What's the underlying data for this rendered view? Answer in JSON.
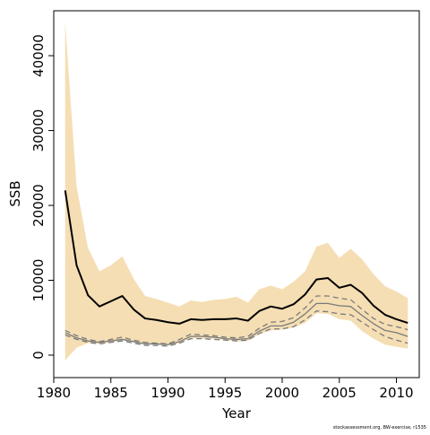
{
  "chart_data": {
    "type": "line",
    "title": "",
    "xlabel": "Year",
    "ylabel": "SSB",
    "xlim": [
      1980,
      2012
    ],
    "ylim": [
      -3000,
      46000
    ],
    "x_ticks": [
      1980,
      1985,
      1990,
      1995,
      2000,
      2005,
      2010
    ],
    "y_ticks": [
      0,
      10000,
      20000,
      30000,
      40000
    ],
    "grid": false,
    "legend": "none",
    "credit": "stockassessment.org, BW-exercise, r1535",
    "years": [
      1981,
      1982,
      1983,
      1984,
      1985,
      1986,
      1987,
      1988,
      1989,
      1990,
      1991,
      1992,
      1993,
      1994,
      1995,
      1996,
      1997,
      1998,
      1999,
      2000,
      2001,
      2002,
      2003,
      2004,
      2005,
      2006,
      2007,
      2008,
      2009,
      2010,
      2011
    ],
    "band": {
      "color": "#f5deb3",
      "upper": [
        44500,
        22500,
        14300,
        11200,
        12000,
        13200,
        10200,
        7900,
        7500,
        7000,
        6500,
        7300,
        7100,
        7400,
        7500,
        7800,
        7000,
        8800,
        9300,
        8800,
        9800,
        11200,
        14500,
        15000,
        13000,
        14200,
        12800,
        10800,
        9200,
        8500,
        7600
      ],
      "lower": [
        -700,
        1000,
        1600,
        1500,
        1700,
        2000,
        1700,
        1500,
        1400,
        1300,
        1600,
        2300,
        2200,
        2200,
        2000,
        1800,
        1900,
        2800,
        3300,
        3400,
        3700,
        4300,
        5600,
        5500,
        4800,
        4600,
        3200,
        2200,
        1400,
        1100,
        900
      ]
    },
    "series": [
      {
        "role": "estimate",
        "color": "#000000",
        "style": "solid",
        "values": [
          22000,
          12000,
          8000,
          6500,
          7200,
          7900,
          6100,
          4900,
          4700,
          4400,
          4200,
          4800,
          4700,
          4800,
          4800,
          4900,
          4600,
          5900,
          6500,
          6200,
          6800,
          8100,
          10100,
          10300,
          9000,
          9400,
          8300,
          6600,
          5400,
          4800,
          4300
        ]
      },
      {
        "role": "comparison-upper",
        "color": "#7a7a7a",
        "style": "dashed",
        "values": [
          3300,
          2600,
          2100,
          1800,
          2100,
          2400,
          2000,
          1700,
          1600,
          1500,
          2100,
          2800,
          2700,
          2600,
          2400,
          2300,
          2500,
          3600,
          4400,
          4500,
          5000,
          6300,
          7900,
          7900,
          7600,
          7400,
          6100,
          4900,
          4100,
          3800,
          3400
        ]
      },
      {
        "role": "comparison-mid",
        "color": "#7a7a7a",
        "style": "solid",
        "values": [
          3000,
          2300,
          1900,
          1700,
          1900,
          2100,
          1800,
          1500,
          1500,
          1400,
          1800,
          2500,
          2500,
          2400,
          2200,
          2100,
          2200,
          3200,
          3900,
          3900,
          4400,
          5500,
          6900,
          6900,
          6600,
          6500,
          5300,
          4200,
          3300,
          3000,
          2500
        ]
      },
      {
        "role": "comparison-lower",
        "color": "#7a7a7a",
        "style": "dashed",
        "values": [
          2700,
          2100,
          1700,
          1500,
          1700,
          1900,
          1600,
          1300,
          1300,
          1200,
          1600,
          2200,
          2200,
          2100,
          2000,
          1900,
          2000,
          2900,
          3500,
          3500,
          3800,
          4700,
          5900,
          5800,
          5500,
          5400,
          4400,
          3400,
          2500,
          2000,
          1600
        ]
      }
    ]
  }
}
